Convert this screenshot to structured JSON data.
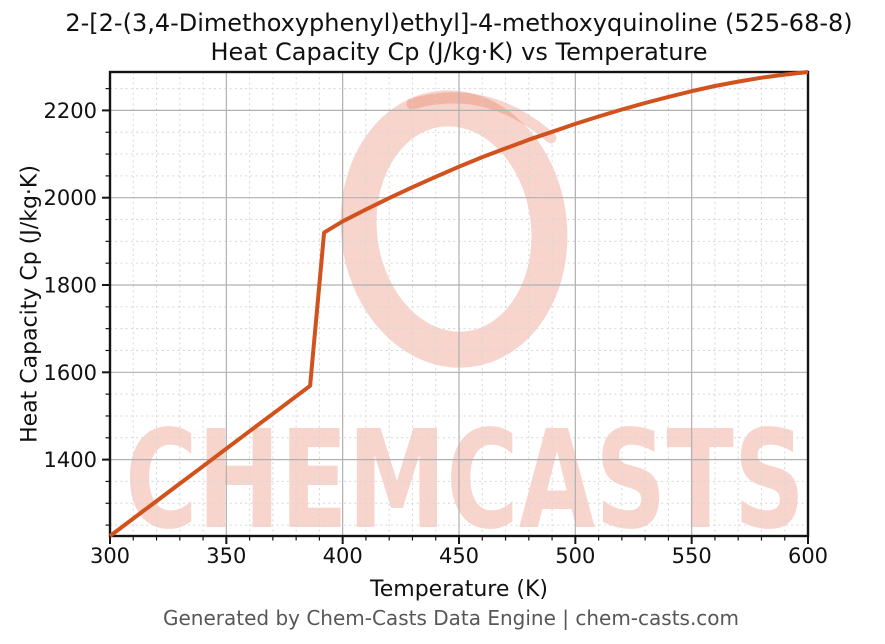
{
  "header": {
    "title_line1": "2-[2-(3,4-Dimethoxyphenyl)ethyl]-4-methoxyquinoline (525-68-8)",
    "title_line2": "Heat Capacity Cp (J/kg·K) vs Temperature"
  },
  "footer": {
    "text": "Generated by Chem-Casts Data Engine | chem-casts.com"
  },
  "watermark": {
    "text": "CHEMCASTS",
    "color": "#dd4f28",
    "opacity": 0.24
  },
  "chart_data": {
    "type": "line",
    "title": "2-[2-(3,4-Dimethoxyphenyl)ethyl]-4-methoxyquinoline (525-68-8) — Heat Capacity Cp (J/kg·K) vs Temperature",
    "xlabel": "Temperature (K)",
    "ylabel": "Heat Capacity Cp (J/kg·K)",
    "xlim": [
      300,
      600
    ],
    "ylim": [
      1225,
      2288
    ],
    "x_major_ticks": [
      300,
      350,
      400,
      450,
      500,
      550,
      600
    ],
    "x_minor_step": 10,
    "y_major_ticks": [
      1400,
      1600,
      1800,
      2000,
      2200
    ],
    "y_minor_step": 50,
    "grid": true,
    "legend": false,
    "series": [
      {
        "name": "Heat Capacity Cp",
        "color": "#d2521e",
        "line_width": 4,
        "points": [
          [
            300,
            1225
          ],
          [
            310,
            1265
          ],
          [
            320,
            1305
          ],
          [
            330,
            1345
          ],
          [
            340,
            1385
          ],
          [
            350,
            1425
          ],
          [
            360,
            1465
          ],
          [
            370,
            1505
          ],
          [
            380,
            1545
          ],
          [
            386,
            1569
          ],
          [
            392,
            1920
          ],
          [
            400,
            1946
          ],
          [
            410,
            1973
          ],
          [
            420,
            1999
          ],
          [
            430,
            2024
          ],
          [
            440,
            2048
          ],
          [
            450,
            2071
          ],
          [
            460,
            2093
          ],
          [
            470,
            2113
          ],
          [
            480,
            2133
          ],
          [
            490,
            2151
          ],
          [
            500,
            2169
          ],
          [
            510,
            2186
          ],
          [
            520,
            2202
          ],
          [
            530,
            2217
          ],
          [
            540,
            2231
          ],
          [
            550,
            2244
          ],
          [
            560,
            2256
          ],
          [
            570,
            2266
          ],
          [
            580,
            2275
          ],
          [
            590,
            2282
          ],
          [
            600,
            2288
          ]
        ]
      }
    ],
    "colors": {
      "spine": "#141414",
      "tick_label": "#111111",
      "grid_major": "#b0b0b0",
      "grid_minor": "#d6d6d6"
    }
  }
}
